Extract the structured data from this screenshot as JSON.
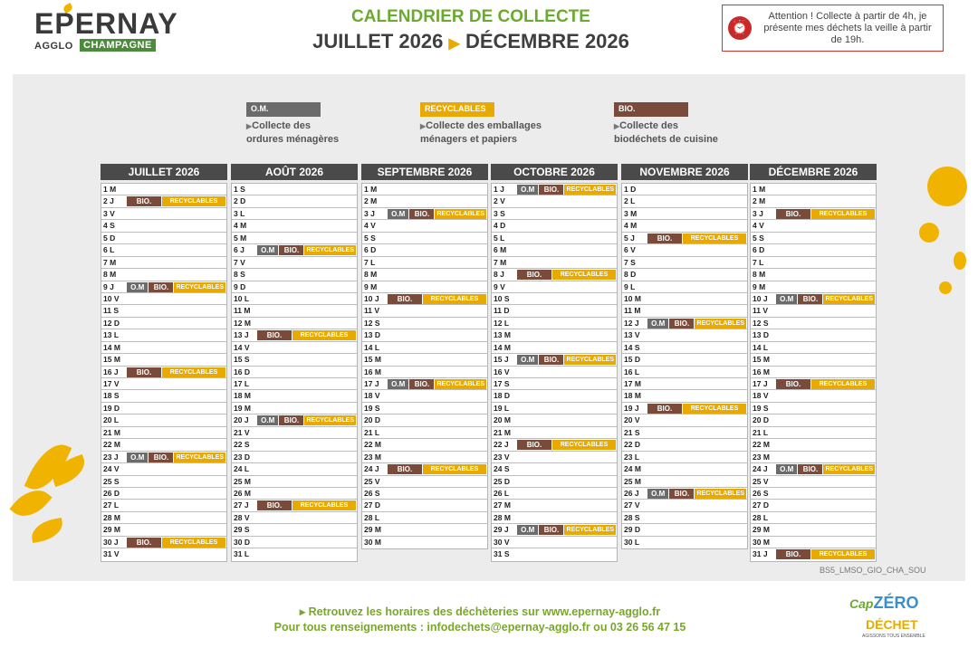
{
  "header": {
    "logo_word": "EPERNAY",
    "logo_agglo": "AGGLO",
    "logo_champagne": "CHAMPAGNE",
    "title_line1": "CALENDRIER DE COLLECTE",
    "title_start": "JUILLET 2026",
    "title_end": "DÉCEMBRE 2026",
    "alert_text": "Attention ! Collecte à partir de 4h, je présente mes déchets la veille à partir de 19h."
  },
  "legend": [
    {
      "badge": "O.M.",
      "line1": "Collecte des",
      "line2": "ordures ménagères",
      "color": "#6b6b6b"
    },
    {
      "badge": "RECYCLABLES",
      "line1": "Collecte des emballages",
      "line2": "ménagers et papiers",
      "color": "#e8a900"
    },
    {
      "badge": "BIO.",
      "line1": "Collecte des",
      "line2": "biodéchets de cuisine",
      "color": "#7a4a3b"
    }
  ],
  "labels": {
    "om": "O.M",
    "bio": "BIO.",
    "rec": "RECYCLABLES"
  },
  "months": [
    {
      "name": "JUILLET 2026",
      "days": [
        "1 M",
        "2 J",
        "3 V",
        "4 S",
        "5 D",
        "6 L",
        "7 M",
        "8 M",
        "9 J",
        "10 V",
        "11 S",
        "12 D",
        "13 L",
        "14 M",
        "15 M",
        "16 J",
        "17 V",
        "18 S",
        "19 D",
        "20 L",
        "21 M",
        "22 M",
        "23 J",
        "24 V",
        "25 S",
        "26 D",
        "27 L",
        "28 M",
        "29 M",
        "30 J",
        "31 V"
      ],
      "tags": {
        "2": [
          "bio",
          "rec"
        ],
        "9": [
          "om",
          "bio",
          "rec"
        ],
        "16": [
          "bio",
          "rec"
        ],
        "23": [
          "om",
          "bio",
          "rec"
        ],
        "30": [
          "bio",
          "rec"
        ]
      }
    },
    {
      "name": "AOÛT 2026",
      "days": [
        "1 S",
        "2 D",
        "3 L",
        "4 M",
        "5 M",
        "6 J",
        "7 V",
        "8 S",
        "9 D",
        "10 L",
        "11 M",
        "12 M",
        "13 J",
        "14 V",
        "15 S",
        "16 D",
        "17 L",
        "18 M",
        "19 M",
        "20 J",
        "21 V",
        "22 S",
        "23 D",
        "24 L",
        "25 M",
        "26 M",
        "27 J",
        "28 V",
        "29 S",
        "30 D",
        "31 L"
      ],
      "tags": {
        "6": [
          "om",
          "bio",
          "rec"
        ],
        "13": [
          "bio",
          "rec"
        ],
        "20": [
          "om",
          "bio",
          "rec"
        ],
        "27": [
          "bio",
          "rec"
        ]
      }
    },
    {
      "name": "SEPTEMBRE 2026",
      "days": [
        "1 M",
        "2 M",
        "3 J",
        "4 V",
        "5 S",
        "6 D",
        "7 L",
        "8 M",
        "9 M",
        "10 J",
        "11 V",
        "12 S",
        "13 D",
        "14 L",
        "15 M",
        "16 M",
        "17 J",
        "18 V",
        "19 S",
        "20 D",
        "21 L",
        "22 M",
        "23 M",
        "24 J",
        "25 V",
        "26 S",
        "27 D",
        "28 L",
        "29 M",
        "30 M"
      ],
      "tags": {
        "3": [
          "om",
          "bio",
          "rec"
        ],
        "10": [
          "bio",
          "rec"
        ],
        "17": [
          "om",
          "bio",
          "rec"
        ],
        "24": [
          "bio",
          "rec"
        ]
      }
    },
    {
      "name": "OCTOBRE 2026",
      "days": [
        "1 J",
        "2 V",
        "3 S",
        "4 D",
        "5 L",
        "6 M",
        "7 M",
        "8 J",
        "9 V",
        "10 S",
        "11 D",
        "12 L",
        "13 M",
        "14 M",
        "15 J",
        "16 V",
        "17 S",
        "18 D",
        "19 L",
        "20 M",
        "21 M",
        "22 J",
        "23 V",
        "24 S",
        "25 D",
        "26 L",
        "27 M",
        "28 M",
        "29 J",
        "30 V",
        "31 S"
      ],
      "tags": {
        "1": [
          "om",
          "bio",
          "rec"
        ],
        "8": [
          "bio",
          "rec"
        ],
        "15": [
          "om",
          "bio",
          "rec"
        ],
        "22": [
          "bio",
          "rec"
        ],
        "29": [
          "om",
          "bio",
          "rec"
        ]
      }
    },
    {
      "name": "NOVEMBRE 2026",
      "days": [
        "1 D",
        "2 L",
        "3 M",
        "4 M",
        "5 J",
        "6 V",
        "7 S",
        "8 D",
        "9 L",
        "10 M",
        "11 M",
        "12 J",
        "13 V",
        "14 S",
        "15 D",
        "16 L",
        "17 M",
        "18 M",
        "19 J",
        "20 V",
        "21 S",
        "22 D",
        "23 L",
        "24 M",
        "25 M",
        "26 J",
        "27 V",
        "28 S",
        "29 D",
        "30 L"
      ],
      "tags": {
        "5": [
          "bio",
          "rec"
        ],
        "12": [
          "om",
          "bio",
          "rec"
        ],
        "19": [
          "bio",
          "rec"
        ],
        "26": [
          "om",
          "bio",
          "rec"
        ]
      }
    },
    {
      "name": "DÉCEMBRE 2026",
      "days": [
        "1 M",
        "2 M",
        "3 J",
        "4 V",
        "5 S",
        "6 D",
        "7 L",
        "8 M",
        "9 M",
        "10 J",
        "11 V",
        "12 S",
        "13 D",
        "14 L",
        "15 M",
        "16 M",
        "17 J",
        "18 V",
        "19 S",
        "20 D",
        "21 L",
        "22 M",
        "23 M",
        "24 J",
        "25 V",
        "26 S",
        "27 D",
        "28 L",
        "29 M",
        "30 M",
        "31 J"
      ],
      "tags": {
        "3": [
          "bio",
          "rec"
        ],
        "10": [
          "om",
          "bio",
          "rec"
        ],
        "17": [
          "bio",
          "rec"
        ],
        "24": [
          "om",
          "bio",
          "rec"
        ],
        "31": [
          "bio",
          "rec"
        ]
      }
    }
  ],
  "reference": "BS5_LMSO_GIO_CHA_SOU",
  "footer": {
    "line1": "▸ Retrouvez les horaires des déchèteries sur www.epernay-agglo.fr",
    "line2": "Pour tous renseignements : infodechets@epernay-agglo.fr ou 03 26 56 47 15",
    "logo_cap": "Cap",
    "logo_zero": "ZÉRO",
    "logo_dechet": "DÉCHET",
    "logo_tagline": "AGISSONS TOUS ENSEMBLE"
  }
}
